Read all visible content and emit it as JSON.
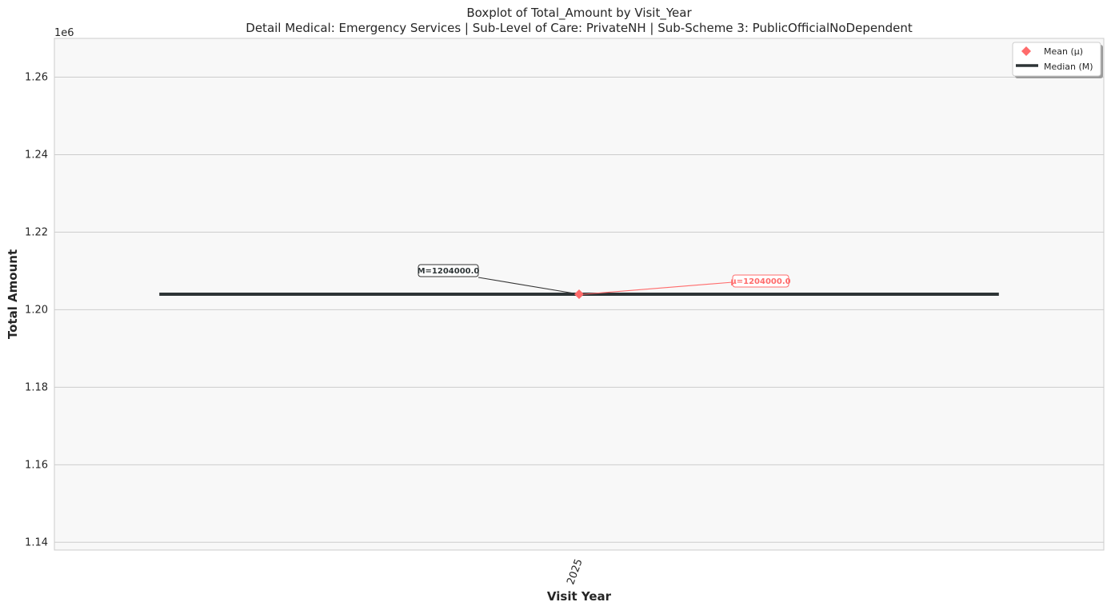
{
  "chart_data": {
    "type": "box",
    "title": "Boxplot of Total_Amount by Visit_Year",
    "subtitle": "Detail Medical: Emergency Services | Sub-Level of Care: PrivateNH | Sub-Scheme 3: PublicOfficialNoDependent",
    "xlabel": "Visit Year",
    "ylabel": "Total Amount",
    "y_offset_label": "1e6",
    "ylim": [
      1138000,
      1270000
    ],
    "y_ticks": [
      1140000,
      1160000,
      1180000,
      1200000,
      1220000,
      1240000,
      1260000
    ],
    "y_tick_labels": [
      "1.14",
      "1.16",
      "1.18",
      "1.20",
      "1.22",
      "1.24",
      "1.26"
    ],
    "categories": [
      "2025"
    ],
    "series": [
      {
        "category": "2025",
        "median": 1204000.0,
        "mean": 1204000.0,
        "q1": 1204000.0,
        "q3": 1204000.0,
        "min": 1204000.0,
        "max": 1204000.0
      }
    ],
    "annotations": {
      "median_label": "M=1204000.0",
      "mean_label": "μ=1204000.0"
    },
    "legend": {
      "placement": "top-right",
      "entries": [
        "Mean (μ)",
        "Median (M)"
      ]
    },
    "grid": true,
    "colors": {
      "median": "#2d3436",
      "mean": "#ff6b6b",
      "grid": "#cccccc",
      "plot_bg": "#f8f8f8",
      "frame": "#cccccc"
    },
    "icons": {
      "mean_marker": "diamond-icon",
      "median_marker": "thick-line-icon"
    }
  }
}
